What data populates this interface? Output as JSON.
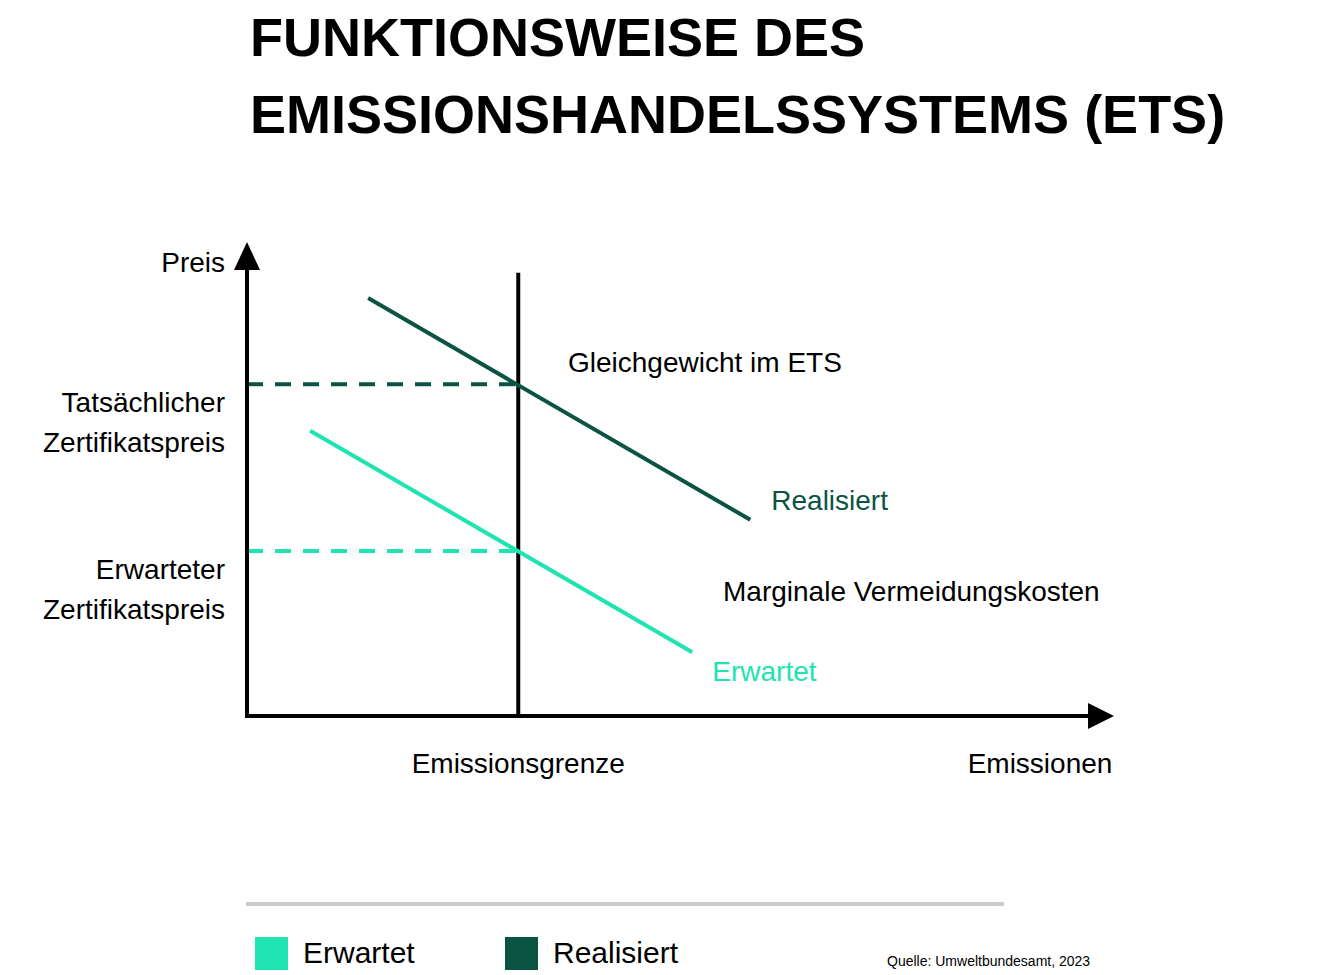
{
  "chart_data": {
    "type": "line",
    "title": "FUNKTIONSWEISE DES\nEMISSIONSHANDELSSYSTEMS (ETS)",
    "x_label": "Emissionen",
    "y_label": "Preis",
    "xlim": [
      0,
      100
    ],
    "ylim": [
      0,
      100
    ],
    "xticks": [],
    "yticks": [],
    "tick_labels": false,
    "grid": false,
    "legend": "bottom",
    "series": [
      {
        "name": "Realisiert",
        "color": "#0b5343",
        "line_style": "solid",
        "x": [
          14.2,
          59.0
        ],
        "values": [
          89.7,
          42.1
        ]
      },
      {
        "name": "Erwartet",
        "color": "#20e3b2",
        "line_style": "solid",
        "x": [
          7.4,
          52.2
        ],
        "values": [
          61.2,
          13.7
        ]
      }
    ],
    "emission_cap": {
      "label": "Emissionsgrenze",
      "x": 31.8,
      "top": 95.1
    },
    "price_levels": [
      {
        "label": "Tatsächlicher\nZertifikatspreis",
        "value": 71.2,
        "color": "#0b5343",
        "line_style": "dashed"
      },
      {
        "label": "Erwarteter\nZertifikatspreis",
        "value": 35.4,
        "color": "#20e3b2",
        "line_style": "dashed"
      }
    ],
    "annotations": [
      "Gleichgewicht im ETS",
      "Marginale Vermeidungskosten"
    ],
    "source": "Quelle: Umweltbundesamt, 2023"
  }
}
